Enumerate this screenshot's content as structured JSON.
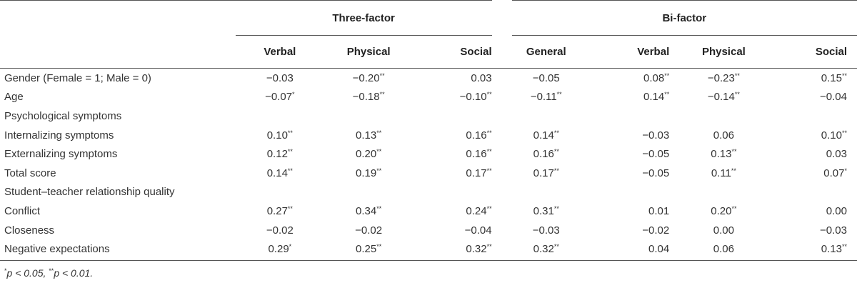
{
  "groups": {
    "three_factor": "Three-factor",
    "bi_factor": "Bi-factor"
  },
  "columns": [
    "Verbal",
    "Physical",
    "Social",
    "General",
    "Verbal",
    "Physical",
    "Social"
  ],
  "rows": [
    {
      "label": "Gender (Female = 1; Male = 0)",
      "cells": [
        [
          "−0.03",
          ""
        ],
        [
          "−0.20",
          "**"
        ],
        [
          "0.03",
          ""
        ],
        [
          "−0.05",
          ""
        ],
        [
          "0.08",
          "**"
        ],
        [
          "−0.23",
          "**"
        ],
        [
          "0.15",
          "**"
        ]
      ]
    },
    {
      "label": "Age",
      "cells": [
        [
          "−0.07",
          "*"
        ],
        [
          "−0.18",
          "**"
        ],
        [
          "−0.10",
          "**"
        ],
        [
          "−0.11",
          "**"
        ],
        [
          "0.14",
          "**"
        ],
        [
          "−0.14",
          "**"
        ],
        [
          "−0.04",
          ""
        ]
      ]
    },
    {
      "label": "Psychological symptoms",
      "cells": []
    },
    {
      "label": "Internalizing symptoms",
      "cells": [
        [
          "0.10",
          "**"
        ],
        [
          "0.13",
          "**"
        ],
        [
          "0.16",
          "**"
        ],
        [
          "0.14",
          "**"
        ],
        [
          "−0.03",
          ""
        ],
        [
          "0.06",
          ""
        ],
        [
          "0.10",
          "**"
        ]
      ]
    },
    {
      "label": "Externalizing symptoms",
      "cells": [
        [
          "0.12",
          "**"
        ],
        [
          "0.20",
          "**"
        ],
        [
          "0.16",
          "**"
        ],
        [
          "0.16",
          "**"
        ],
        [
          "−0.05",
          ""
        ],
        [
          "0.13",
          "**"
        ],
        [
          "0.03",
          ""
        ]
      ]
    },
    {
      "label": "Total score",
      "cells": [
        [
          "0.14",
          "**"
        ],
        [
          "0.19",
          "**"
        ],
        [
          "0.17",
          "**"
        ],
        [
          "0.17",
          "**"
        ],
        [
          "−0.05",
          ""
        ],
        [
          "0.11",
          "**"
        ],
        [
          "0.07",
          "*"
        ]
      ]
    },
    {
      "label": "Student–teacher relationship quality",
      "cells": []
    },
    {
      "label": "Conflict",
      "cells": [
        [
          "0.27",
          "**"
        ],
        [
          "0.34",
          "**"
        ],
        [
          "0.24",
          "**"
        ],
        [
          "0.31",
          "**"
        ],
        [
          "0.01",
          ""
        ],
        [
          "0.20",
          "**"
        ],
        [
          "0.00",
          ""
        ]
      ]
    },
    {
      "label": "Closeness",
      "cells": [
        [
          "−0.02",
          ""
        ],
        [
          "−0.02",
          ""
        ],
        [
          "−0.04",
          ""
        ],
        [
          "−0.03",
          ""
        ],
        [
          "−0.02",
          ""
        ],
        [
          "0.00",
          ""
        ],
        [
          "−0.03",
          ""
        ]
      ]
    },
    {
      "label": "Negative expectations",
      "cells": [
        [
          "0.29",
          "*"
        ],
        [
          "0.25",
          "**"
        ],
        [
          "0.32",
          "**"
        ],
        [
          "0.32",
          "**"
        ],
        [
          "0.04",
          ""
        ],
        [
          "0.06",
          ""
        ],
        [
          "0.13",
          "**"
        ]
      ]
    }
  ],
  "footnote": {
    "mark1": "*",
    "text1": "p < 0.05, ",
    "mark2": "**",
    "text2": "p < 0.01."
  }
}
